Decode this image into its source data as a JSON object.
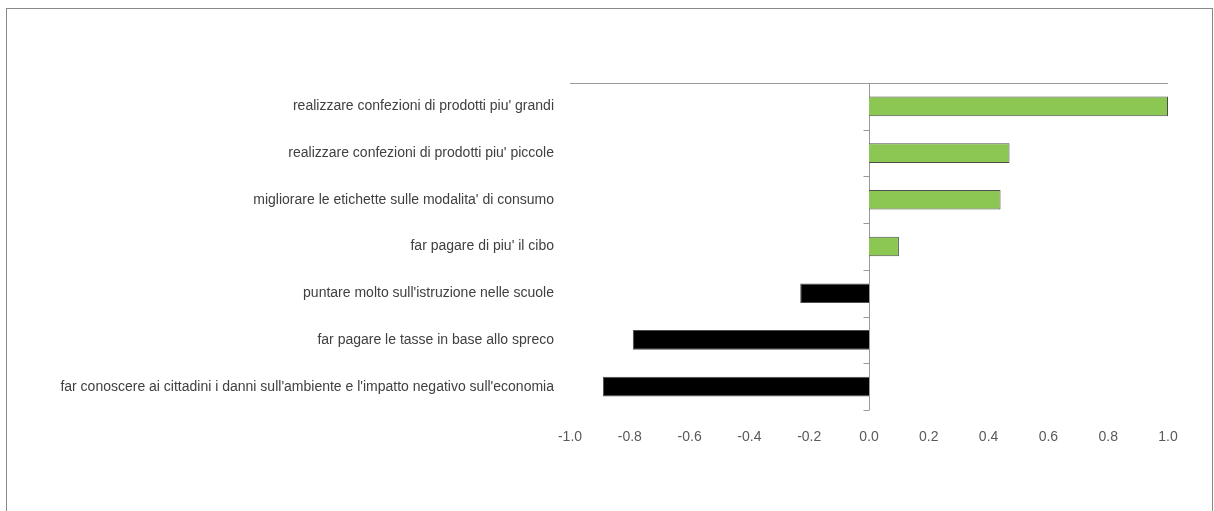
{
  "chart_data": {
    "type": "bar",
    "orientation": "horizontal",
    "categories": [
      "realizzare confezioni di prodotti piu' grandi",
      "realizzare confezioni di prodotti piu' piccole",
      "migliorare le etichette sulle modalita' di consumo",
      "far pagare di piu' il cibo",
      "puntare molto sull'istruzione nelle scuole",
      "far pagare le tasse in base allo spreco",
      "far conoscere ai cittadini i danni sull'ambiente e l'impatto negativo sull'economia"
    ],
    "values": [
      1.0,
      0.47,
      0.44,
      0.1,
      -0.23,
      -0.79,
      -0.89
    ],
    "colors": [
      "#8cc653",
      "#8cc653",
      "#8cc653",
      "#8cc653",
      "#000000",
      "#000000",
      "#000000"
    ],
    "xlim": [
      -1,
      1
    ],
    "xticks": [
      {
        "value": -1,
        "label": "-1.0"
      },
      -0.8,
      -0.6,
      -0.4,
      -0.2,
      {
        "value": 0,
        "label": "0.0"
      },
      0.2,
      0.4,
      0.6,
      0.8,
      {
        "value": 1,
        "label": "1.0"
      }
    ]
  }
}
